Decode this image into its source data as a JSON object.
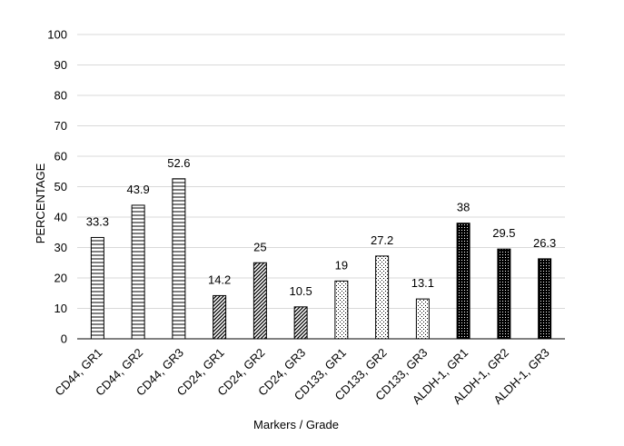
{
  "chart_data": {
    "type": "bar",
    "title": "",
    "xlabel": "Markers / Grade",
    "ylabel": "PERCENTAGE",
    "ylim": [
      0,
      100
    ],
    "yticks": [
      0,
      10,
      20,
      30,
      40,
      50,
      60,
      70,
      80,
      90,
      100
    ],
    "grid": true,
    "legend": "none",
    "categories": [
      "CD44, GR1",
      "CD44, GR2",
      "CD44, GR3",
      "CD24, GR1",
      "CD24, GR2",
      "CD24, GR3",
      "CD133, GR1",
      "CD133, GR2",
      "CD133, GR3",
      "ALDH-1, GR1",
      "ALDH-1, GR2",
      "ALDH-1, GR3"
    ],
    "values": [
      33.3,
      43.9,
      52.6,
      14.2,
      25,
      10.5,
      19,
      27.2,
      13.1,
      38,
      29.5,
      26.3
    ],
    "patterns": [
      "horizontal-lines",
      "horizontal-lines",
      "horizontal-lines",
      "diagonal-lines",
      "diagonal-lines",
      "diagonal-lines",
      "dots",
      "dots",
      "dots",
      "dense-dots",
      "dense-dots",
      "dense-dots"
    ],
    "colors": {
      "bar_stroke": "#000000",
      "grid": "#d9d9d9",
      "axis": "#000000",
      "text": "#000000"
    }
  }
}
